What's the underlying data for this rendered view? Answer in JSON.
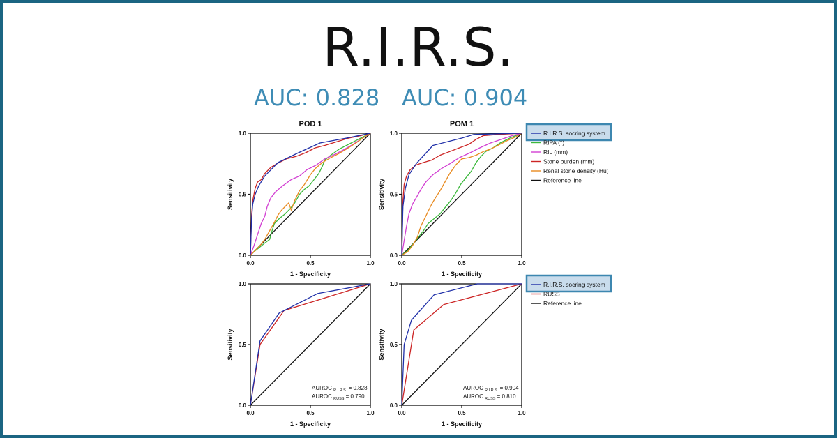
{
  "header": {
    "title": "R.I.R.S.",
    "auc_left": "AUC: 0.828",
    "auc_right": "AUC: 0.904"
  },
  "colors": {
    "frame": "#1b6582",
    "auc_text": "#3e8cb5",
    "legend_highlight_fill": "#c9dcec",
    "legend_highlight_border": "#3d87b0"
  },
  "chart_data": [
    {
      "type": "line",
      "title": "POD 1",
      "xlabel": "1 - Specificity",
      "ylabel": "Sensitivity",
      "xlim": [
        0,
        1
      ],
      "ylim": [
        0,
        1
      ],
      "ticks": [
        "0.0",
        "0.5",
        "1.0"
      ],
      "series": [
        {
          "name": "R.I.R.S. socring system",
          "color": "#1f2fa8",
          "points": [
            [
              0,
              0
            ],
            [
              0.01,
              0.3
            ],
            [
              0.02,
              0.42
            ],
            [
              0.04,
              0.5
            ],
            [
              0.07,
              0.57
            ],
            [
              0.12,
              0.65
            ],
            [
              0.23,
              0.76
            ],
            [
              0.4,
              0.84
            ],
            [
              0.58,
              0.92
            ],
            [
              0.8,
              0.96
            ],
            [
              1,
              1
            ]
          ]
        },
        {
          "name": "RIPA (°)",
          "color": "#3cb83c",
          "points": [
            [
              0,
              0
            ],
            [
              0.03,
              0.03
            ],
            [
              0.07,
              0.06
            ],
            [
              0.12,
              0.1
            ],
            [
              0.16,
              0.13
            ],
            [
              0.18,
              0.2
            ],
            [
              0.2,
              0.26
            ],
            [
              0.24,
              0.3
            ],
            [
              0.29,
              0.34
            ],
            [
              0.33,
              0.38
            ],
            [
              0.37,
              0.43
            ],
            [
              0.41,
              0.5
            ],
            [
              0.45,
              0.54
            ],
            [
              0.49,
              0.57
            ],
            [
              0.53,
              0.62
            ],
            [
              0.57,
              0.67
            ],
            [
              0.6,
              0.73
            ],
            [
              0.62,
              0.78
            ],
            [
              0.67,
              0.82
            ],
            [
              0.74,
              0.87
            ],
            [
              0.84,
              0.92
            ],
            [
              0.92,
              0.96
            ],
            [
              1,
              1
            ]
          ]
        },
        {
          "name": "RIL (mm)",
          "color": "#d23fd2",
          "points": [
            [
              0,
              0
            ],
            [
              0.03,
              0.08
            ],
            [
              0.06,
              0.17
            ],
            [
              0.09,
              0.26
            ],
            [
              0.12,
              0.32
            ],
            [
              0.14,
              0.4
            ],
            [
              0.17,
              0.47
            ],
            [
              0.21,
              0.52
            ],
            [
              0.27,
              0.57
            ],
            [
              0.34,
              0.62
            ],
            [
              0.41,
              0.65
            ],
            [
              0.47,
              0.7
            ],
            [
              0.55,
              0.74
            ],
            [
              0.62,
              0.79
            ],
            [
              0.69,
              0.82
            ],
            [
              0.77,
              0.86
            ],
            [
              0.84,
              0.9
            ],
            [
              0.92,
              0.95
            ],
            [
              1,
              1
            ]
          ]
        },
        {
          "name": "Stone burden (mm)",
          "color": "#cc2424",
          "points": [
            [
              0,
              0
            ],
            [
              0.01,
              0.33
            ],
            [
              0.02,
              0.45
            ],
            [
              0.04,
              0.55
            ],
            [
              0.06,
              0.6
            ],
            [
              0.09,
              0.62
            ],
            [
              0.12,
              0.67
            ],
            [
              0.17,
              0.72
            ],
            [
              0.22,
              0.75
            ],
            [
              0.3,
              0.79
            ],
            [
              0.38,
              0.81
            ],
            [
              0.46,
              0.84
            ],
            [
              0.54,
              0.88
            ],
            [
              0.62,
              0.9
            ],
            [
              0.72,
              0.93
            ],
            [
              0.82,
              0.96
            ],
            [
              0.92,
              0.98
            ],
            [
              1,
              1
            ]
          ]
        },
        {
          "name": "Renal stone density (Hu)",
          "color": "#e88a1f",
          "points": [
            [
              0,
              0
            ],
            [
              0.04,
              0.04
            ],
            [
              0.08,
              0.08
            ],
            [
              0.12,
              0.13
            ],
            [
              0.16,
              0.2
            ],
            [
              0.2,
              0.27
            ],
            [
              0.23,
              0.33
            ],
            [
              0.26,
              0.37
            ],
            [
              0.29,
              0.4
            ],
            [
              0.32,
              0.43
            ],
            [
              0.34,
              0.37
            ],
            [
              0.37,
              0.45
            ],
            [
              0.41,
              0.53
            ],
            [
              0.45,
              0.58
            ],
            [
              0.5,
              0.66
            ],
            [
              0.54,
              0.71
            ],
            [
              0.6,
              0.76
            ],
            [
              0.67,
              0.8
            ],
            [
              0.73,
              0.83
            ],
            [
              0.8,
              0.87
            ],
            [
              0.88,
              0.92
            ],
            [
              0.95,
              0.97
            ],
            [
              1,
              1
            ]
          ]
        },
        {
          "name": "Reference line",
          "color": "#111111",
          "points": [
            [
              0,
              0
            ],
            [
              1,
              1
            ]
          ]
        }
      ]
    },
    {
      "type": "line",
      "title": "POM 1",
      "xlabel": "1 - Specificity",
      "ylabel": "Sensitivity",
      "xlim": [
        0,
        1
      ],
      "ylim": [
        0,
        1
      ],
      "ticks": [
        "0.0",
        "0.5",
        "1.0"
      ],
      "series": [
        {
          "name": "R.I.R.S. socring system",
          "color": "#1f2fa8",
          "points": [
            [
              0,
              0
            ],
            [
              0.01,
              0.4
            ],
            [
              0.03,
              0.55
            ],
            [
              0.06,
              0.66
            ],
            [
              0.12,
              0.75
            ],
            [
              0.26,
              0.9
            ],
            [
              0.5,
              0.96
            ],
            [
              0.6,
              0.99
            ],
            [
              1,
              1
            ]
          ]
        },
        {
          "name": "RIPA (°)",
          "color": "#3cb83c",
          "points": [
            [
              0,
              0
            ],
            [
              0.05,
              0.04
            ],
            [
              0.1,
              0.1
            ],
            [
              0.14,
              0.15
            ],
            [
              0.18,
              0.2
            ],
            [
              0.22,
              0.26
            ],
            [
              0.27,
              0.3
            ],
            [
              0.32,
              0.34
            ],
            [
              0.36,
              0.39
            ],
            [
              0.41,
              0.45
            ],
            [
              0.45,
              0.51
            ],
            [
              0.49,
              0.58
            ],
            [
              0.53,
              0.63
            ],
            [
              0.58,
              0.69
            ],
            [
              0.62,
              0.76
            ],
            [
              0.66,
              0.81
            ],
            [
              0.7,
              0.85
            ],
            [
              0.76,
              0.88
            ],
            [
              0.82,
              0.92
            ],
            [
              0.9,
              0.96
            ],
            [
              1,
              1
            ]
          ]
        },
        {
          "name": "RIL (mm)",
          "color": "#d23fd2",
          "points": [
            [
              0,
              0
            ],
            [
              0.02,
              0.12
            ],
            [
              0.04,
              0.24
            ],
            [
              0.06,
              0.34
            ],
            [
              0.09,
              0.42
            ],
            [
              0.12,
              0.47
            ],
            [
              0.16,
              0.54
            ],
            [
              0.2,
              0.6
            ],
            [
              0.26,
              0.66
            ],
            [
              0.33,
              0.71
            ],
            [
              0.4,
              0.75
            ],
            [
              0.48,
              0.8
            ],
            [
              0.57,
              0.84
            ],
            [
              0.65,
              0.88
            ],
            [
              0.74,
              0.92
            ],
            [
              0.83,
              0.95
            ],
            [
              0.92,
              0.98
            ],
            [
              1,
              1
            ]
          ]
        },
        {
          "name": "Stone burden (mm)",
          "color": "#cc2424",
          "points": [
            [
              0,
              0
            ],
            [
              0.01,
              0.45
            ],
            [
              0.02,
              0.58
            ],
            [
              0.04,
              0.65
            ],
            [
              0.07,
              0.7
            ],
            [
              0.12,
              0.74
            ],
            [
              0.18,
              0.76
            ],
            [
              0.25,
              0.78
            ],
            [
              0.32,
              0.82
            ],
            [
              0.4,
              0.85
            ],
            [
              0.48,
              0.88
            ],
            [
              0.56,
              0.91
            ],
            [
              0.62,
              0.95
            ],
            [
              0.68,
              0.98
            ],
            [
              0.8,
              0.99
            ],
            [
              1,
              1
            ]
          ]
        },
        {
          "name": "Renal stone density (Hu)",
          "color": "#e88a1f",
          "points": [
            [
              0,
              0
            ],
            [
              0.05,
              0.03
            ],
            [
              0.09,
              0.08
            ],
            [
              0.13,
              0.15
            ],
            [
              0.16,
              0.24
            ],
            [
              0.19,
              0.3
            ],
            [
              0.22,
              0.36
            ],
            [
              0.25,
              0.42
            ],
            [
              0.28,
              0.47
            ],
            [
              0.32,
              0.53
            ],
            [
              0.36,
              0.6
            ],
            [
              0.4,
              0.67
            ],
            [
              0.45,
              0.74
            ],
            [
              0.5,
              0.79
            ],
            [
              0.56,
              0.8
            ],
            [
              0.62,
              0.82
            ],
            [
              0.68,
              0.85
            ],
            [
              0.74,
              0.87
            ],
            [
              0.8,
              0.9
            ],
            [
              0.88,
              0.94
            ],
            [
              0.95,
              0.97
            ],
            [
              1,
              1
            ]
          ]
        },
        {
          "name": "Reference line",
          "color": "#111111",
          "points": [
            [
              0,
              0
            ],
            [
              1,
              1
            ]
          ]
        }
      ]
    },
    {
      "type": "line",
      "title": "",
      "xlabel": "1 - Specificity",
      "ylabel": "Sensitivity",
      "xlim": [
        0,
        1
      ],
      "ylim": [
        0,
        1
      ],
      "ticks": [
        "0.0",
        "0.5",
        "1.0"
      ],
      "annotation": {
        "line1_prefix": "AUROC",
        "line1_sub": "R.I.R.S.",
        "line1_value": "= 0.828",
        "line2_prefix": "AUROC",
        "line2_sub": "RUSS",
        "line2_value": "= 0.790"
      },
      "series": [
        {
          "name": "R.I.R.S. socring system",
          "color": "#1f2fa8",
          "points": [
            [
              0,
              0
            ],
            [
              0.08,
              0.53
            ],
            [
              0.24,
              0.76
            ],
            [
              0.56,
              0.92
            ],
            [
              1,
              1
            ]
          ]
        },
        {
          "name": "RUSS",
          "color": "#cc2424",
          "points": [
            [
              0,
              0
            ],
            [
              0.08,
              0.5
            ],
            [
              0.28,
              0.78
            ],
            [
              1,
              1
            ]
          ]
        },
        {
          "name": "Reference line",
          "color": "#111111",
          "points": [
            [
              0,
              0
            ],
            [
              1,
              1
            ]
          ]
        }
      ]
    },
    {
      "type": "line",
      "title": "",
      "xlabel": "1 - Specificity",
      "ylabel": "Sensitivity",
      "xlim": [
        0,
        1
      ],
      "ylim": [
        0,
        1
      ],
      "ticks": [
        "0.0",
        "0.5",
        "1.0"
      ],
      "annotation": {
        "line1_prefix": "AUROC",
        "line1_sub": "R.I.R.S.",
        "line1_value": "= 0.904",
        "line2_prefix": "AUROC",
        "line2_sub": "RUSS",
        "line2_value": "= 0.810"
      },
      "series": [
        {
          "name": "R.I.R.S. socring system",
          "color": "#1f2fa8",
          "points": [
            [
              0,
              0
            ],
            [
              0.02,
              0.5
            ],
            [
              0.08,
              0.7
            ],
            [
              0.27,
              0.91
            ],
            [
              0.63,
              1
            ],
            [
              1,
              1
            ]
          ]
        },
        {
          "name": "RUSS",
          "color": "#cc2424",
          "points": [
            [
              0,
              0
            ],
            [
              0.1,
              0.62
            ],
            [
              0.35,
              0.83
            ],
            [
              1,
              1
            ]
          ]
        },
        {
          "name": "Reference line",
          "color": "#111111",
          "points": [
            [
              0,
              0
            ],
            [
              1,
              1
            ]
          ]
        }
      ]
    }
  ],
  "legends": [
    {
      "items": [
        "R.I.R.S. socring system",
        "RIPA (°)",
        "RIL (mm)",
        "Stone burden (mm)",
        "Renal stone density (Hu)",
        "Reference line"
      ],
      "colors": [
        "#1f2fa8",
        "#3cb83c",
        "#d23fd2",
        "#cc2424",
        "#e88a1f",
        "#111111"
      ]
    },
    {
      "items": [
        "R.I.R.S. socring system",
        "RUSS",
        "Reference line"
      ],
      "colors": [
        "#1f2fa8",
        "#cc2424",
        "#111111"
      ]
    }
  ]
}
